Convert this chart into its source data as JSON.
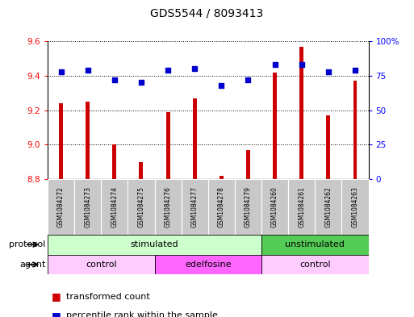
{
  "title": "GDS5544 / 8093413",
  "samples": [
    "GSM1084272",
    "GSM1084273",
    "GSM1084274",
    "GSM1084275",
    "GSM1084276",
    "GSM1084277",
    "GSM1084278",
    "GSM1084279",
    "GSM1084260",
    "GSM1084261",
    "GSM1084262",
    "GSM1084263"
  ],
  "transformed_count": [
    9.24,
    9.25,
    9.0,
    8.9,
    9.19,
    9.27,
    8.82,
    8.97,
    9.42,
    9.57,
    9.17,
    9.37
  ],
  "percentile_rank": [
    78,
    79,
    72,
    70,
    79,
    80,
    68,
    72,
    83,
    83,
    78,
    79
  ],
  "ylim_left": [
    8.8,
    9.6
  ],
  "ylim_right": [
    0,
    100
  ],
  "yticks_left": [
    8.8,
    9.0,
    9.2,
    9.4,
    9.6
  ],
  "yticks_right_labels": [
    "0",
    "25",
    "50",
    "75",
    "100%"
  ],
  "yticks_right_vals": [
    0,
    25,
    50,
    75,
    100
  ],
  "bar_color": "#cc0000",
  "dot_color": "#0000cc",
  "bar_bottom": 8.8,
  "bar_width": 0.15,
  "protocol_groups": [
    {
      "label": "stimulated",
      "start": 0,
      "end": 8,
      "color": "#ccffcc"
    },
    {
      "label": "unstimulated",
      "start": 8,
      "end": 12,
      "color": "#55cc55"
    }
  ],
  "agent_groups": [
    {
      "label": "control",
      "start": 0,
      "end": 4,
      "color": "#ffccff"
    },
    {
      "label": "edelfosine",
      "start": 4,
      "end": 8,
      "color": "#ff66ff"
    },
    {
      "label": "control",
      "start": 8,
      "end": 12,
      "color": "#ffccff"
    }
  ],
  "sample_box_color": "#c8c8c8",
  "grid_color": "black",
  "background_color": "white",
  "title_fontsize": 10,
  "tick_fontsize": 7.5,
  "sample_fontsize": 5.5,
  "panel_fontsize": 8,
  "legend_fontsize": 8
}
